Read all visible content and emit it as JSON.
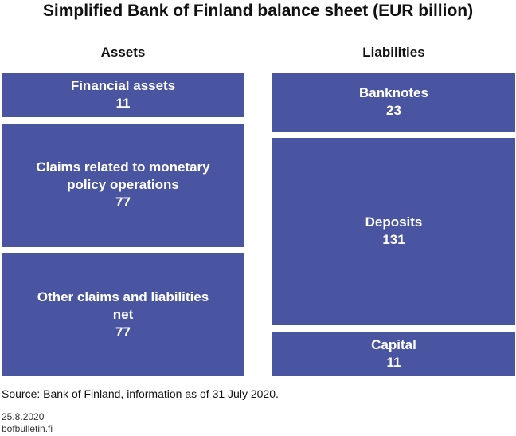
{
  "chart_data": {
    "type": "balance-sheet",
    "title": "Simplified Bank of Finland balance sheet (EUR billion)",
    "color": "#4a55a2",
    "columns": [
      {
        "name": "Assets",
        "items": [
          {
            "label": "Financial assets",
            "value": 11
          },
          {
            "label": "Claims related to monetary policy operations",
            "value": 77
          },
          {
            "label": "Other claims and liabilities net",
            "value": 77
          }
        ]
      },
      {
        "name": "Liabilities",
        "items": [
          {
            "label": "Banknotes",
            "value": 23
          },
          {
            "label": "Deposits",
            "value": 131
          },
          {
            "label": "Capital",
            "value": 11
          }
        ]
      }
    ],
    "source": "Source: Bank of Finland, information as of 31 July 2020.",
    "date": "25.8.2020",
    "site": "bofbulletin.fi"
  }
}
